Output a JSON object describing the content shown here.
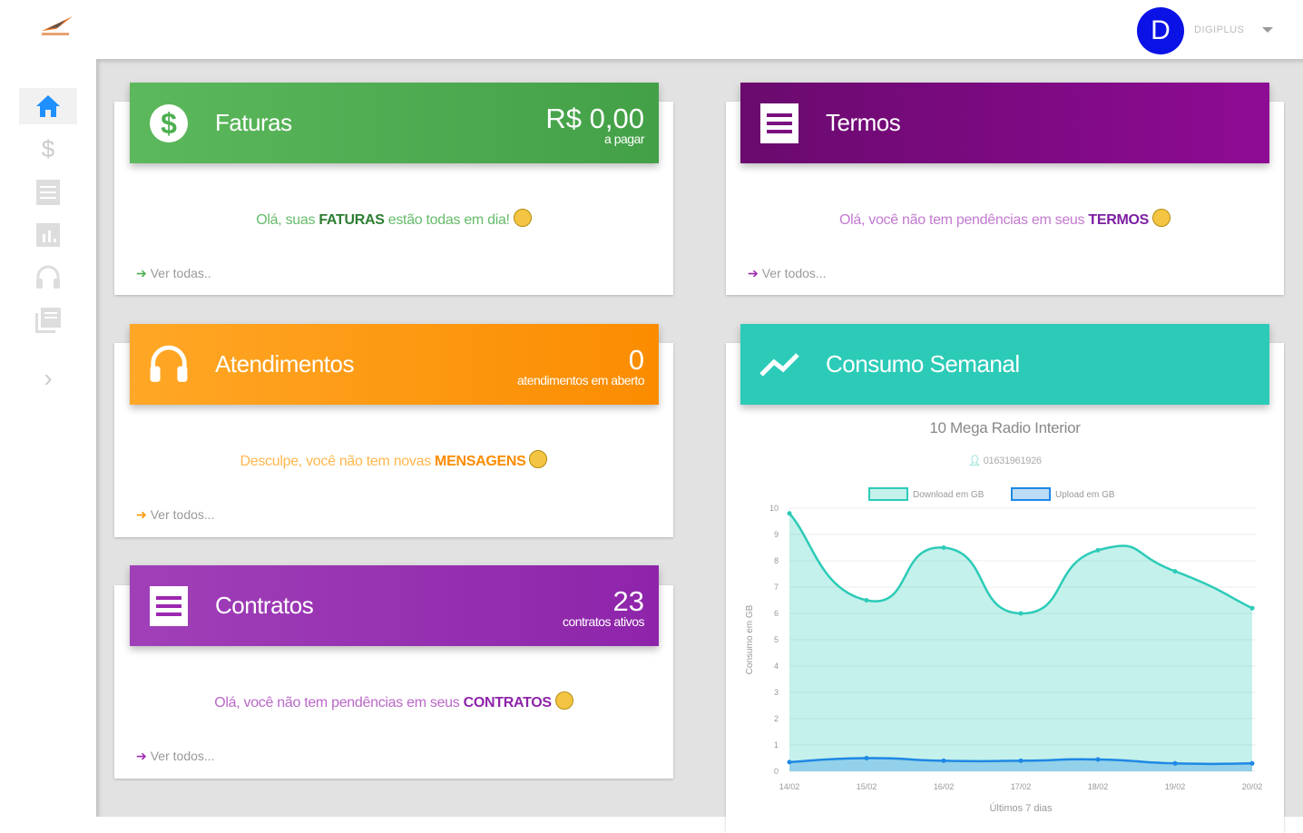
{
  "header": {
    "user_initial": "D",
    "user_name": "DIGIPLUS"
  },
  "sidebar": {
    "items": [
      {
        "icon": "home-icon",
        "active": true
      },
      {
        "icon": "dollar-icon"
      },
      {
        "icon": "list-icon"
      },
      {
        "icon": "chart-icon"
      },
      {
        "icon": "headset-icon"
      },
      {
        "icon": "library-icon"
      },
      {
        "icon": "chevron-right-icon"
      }
    ]
  },
  "faturas": {
    "title": "Faturas",
    "value": "R$ 0,00",
    "value_label": "a pagar",
    "msg_pre": "Olá, suas ",
    "msg_bold": "FATURAS",
    "msg_post": " estão todas em dia!",
    "link": "Ver todas..",
    "color": "#4caf50"
  },
  "atendimentos": {
    "title": "Atendimentos",
    "value": "0",
    "value_label": "atendimentos em aberto",
    "msg_pre": "Desculpe, você não tem novas ",
    "msg_bold": "MENSAGENS",
    "msg_post": "",
    "link": "Ver todos...",
    "color": "#ff9800"
  },
  "contratos": {
    "title": "Contratos",
    "value": "23",
    "value_label": "contratos ativos",
    "msg_pre": "Olá, você não tem pendências em seus ",
    "msg_bold": "CONTRATOS",
    "msg_post": "",
    "link": "Ver todos...",
    "color": "#9c27b0"
  },
  "termos": {
    "title": "Termos",
    "msg_pre": "Olá, você não tem pendências em seus ",
    "msg_bold": "TERMOS",
    "msg_post": "",
    "link": "Ver todos...",
    "color": "#7b0f7f"
  },
  "consumo": {
    "title": "Consumo Semanal",
    "plan": "10 Mega Radio Interior",
    "client_id": "01631961926",
    "color": "#2ccbb8"
  },
  "chart_data": {
    "type": "area",
    "categories": [
      "14/02",
      "15/02",
      "16/02",
      "17/02",
      "18/02",
      "19/02",
      "20/02"
    ],
    "series": [
      {
        "name": "Download em GB",
        "values": [
          9.8,
          6.5,
          8.5,
          6.0,
          8.4,
          7.6,
          6.2
        ],
        "color": "#2ccbb8"
      },
      {
        "name": "Upload em GB",
        "values": [
          0.35,
          0.5,
          0.4,
          0.4,
          0.45,
          0.3,
          0.3
        ],
        "color": "#1e88e5"
      }
    ],
    "xlabel": "Últimos 7 dias",
    "ylabel": "Consumo em GB",
    "ylim": [
      0,
      10
    ],
    "yticks": [
      "0",
      "1",
      "2",
      "3",
      "4",
      "5",
      "6",
      "7",
      "8",
      "9",
      "10"
    ],
    "grid": true,
    "legend": "top"
  }
}
